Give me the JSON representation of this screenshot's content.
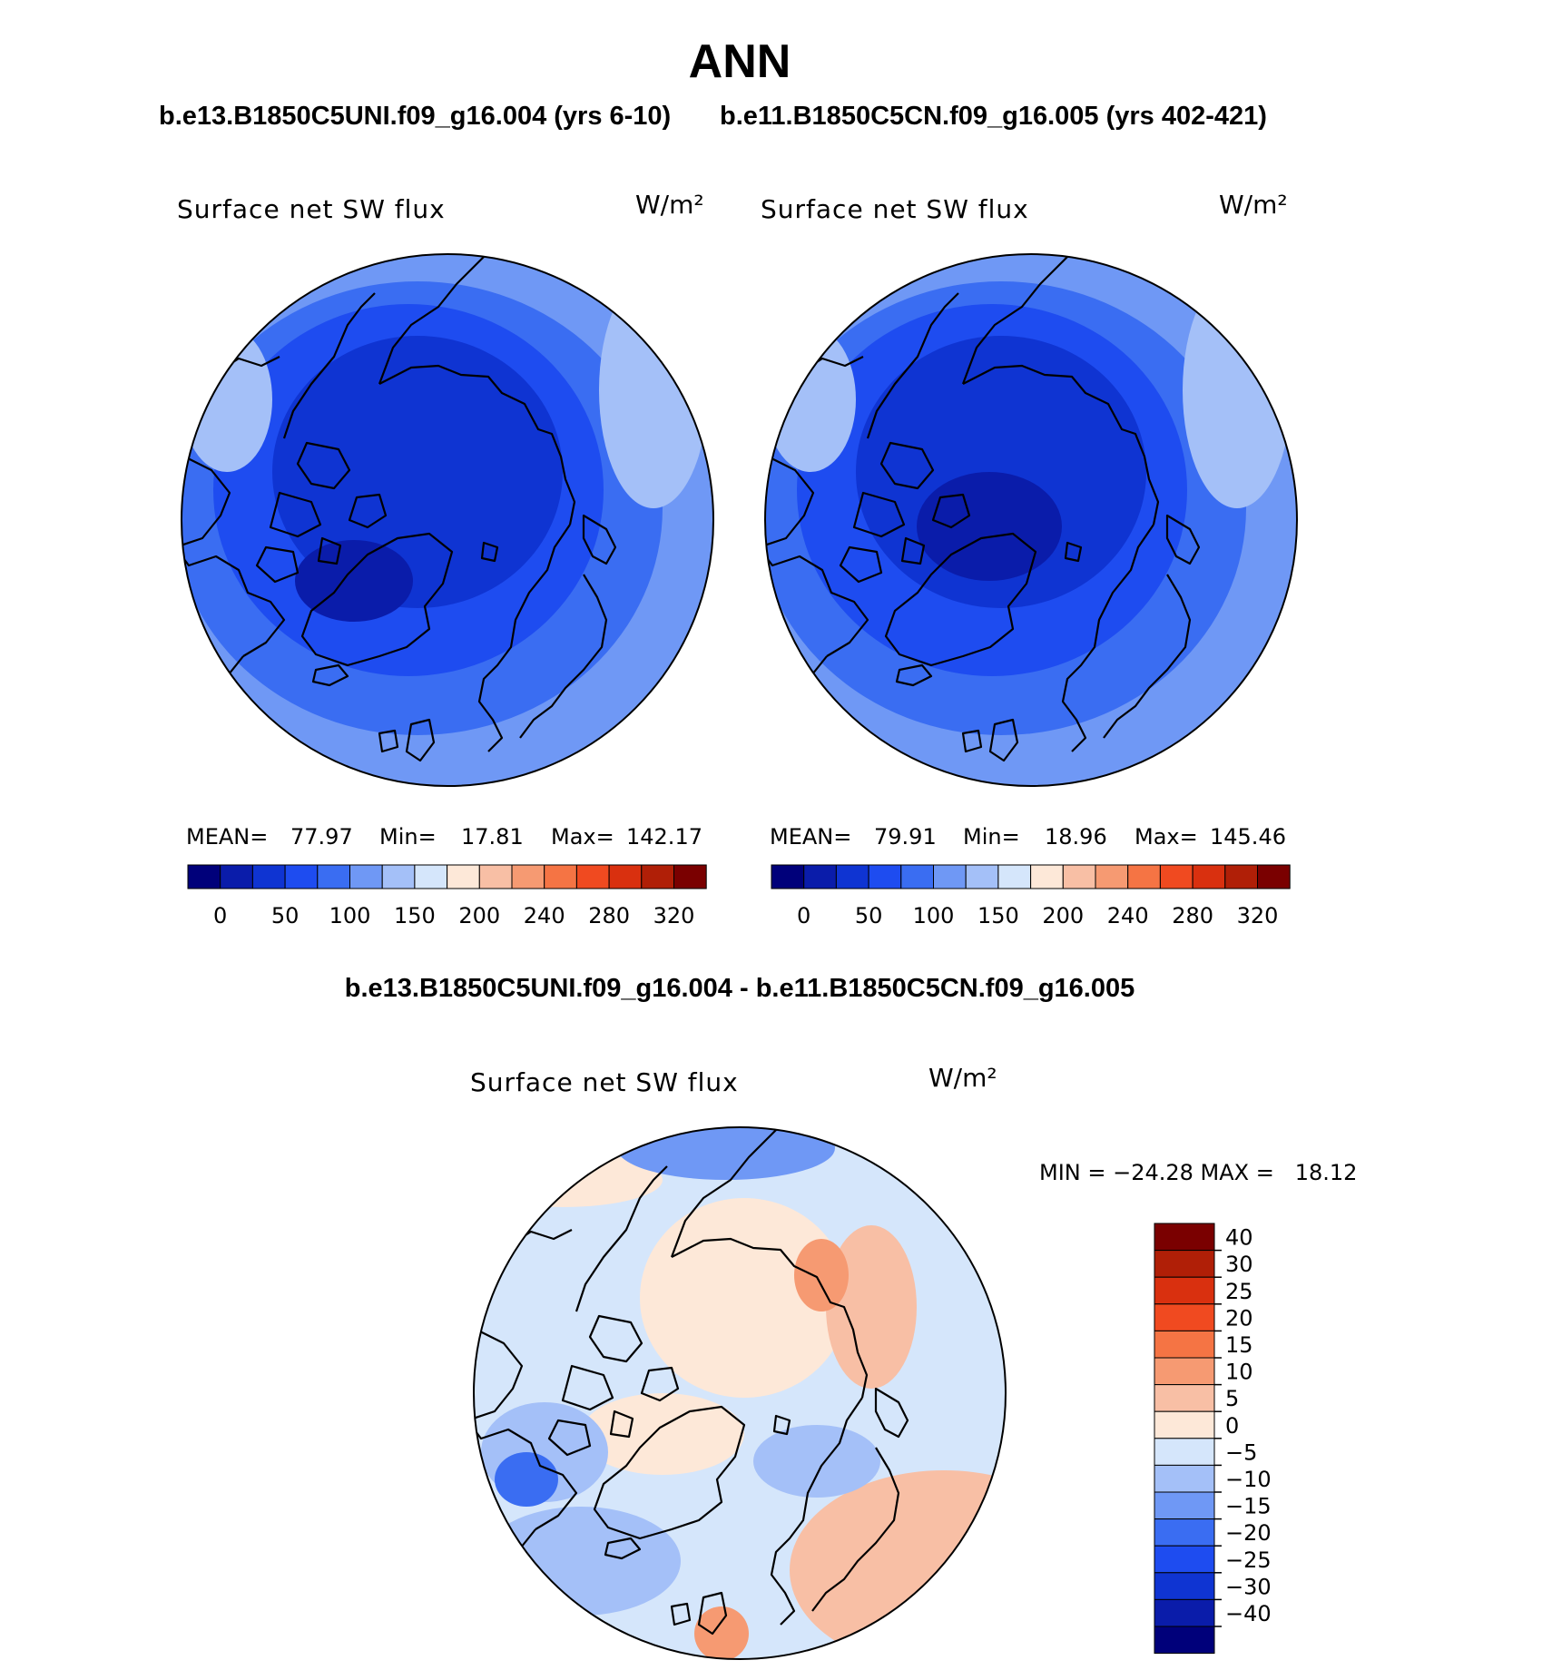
{
  "title": "ANN",
  "panels": [
    {
      "case_title": "b.e13.B1850C5UNI.f09_g16.004 (yrs 6-10)",
      "variable": "Surface net SW flux",
      "units": "W/m²",
      "stats": {
        "mean_label": "MEAN=",
        "mean": "77.97",
        "min_label": "Min=",
        "min": "17.81",
        "max_label": "Max=",
        "max": "142.17"
      }
    },
    {
      "case_title": "b.e11.B1850C5CN.f09_g16.005 (yrs 402-421)",
      "variable": "Surface net SW flux",
      "units": "W/m²",
      "stats": {
        "mean_label": "MEAN=",
        "mean": "79.91",
        "min_label": "Min=",
        "min": "18.96",
        "max_label": "Max=",
        "max": "145.46"
      }
    }
  ],
  "difference": {
    "title": "b.e13.B1850C5UNI.f09_g16.004 - b.e11.B1850C5CN.f09_g16.005",
    "variable": "Surface net SW flux",
    "units": "W/m²",
    "stats_text": "MIN = −24.28 MAX =   18.12"
  },
  "colorbar_main": {
    "colors": [
      "#00007a",
      "#0a1caa",
      "#0f34d2",
      "#1e4cf0",
      "#3a6df2",
      "#6f98f5",
      "#a4c0f8",
      "#d5e6fb",
      "#fde8d8",
      "#f8bfa5",
      "#f69a72",
      "#f57444",
      "#f04a20",
      "#d9300f",
      "#b01f07",
      "#7a0000"
    ],
    "labels": [
      "0",
      "50",
      "100",
      "150",
      "200",
      "240",
      "280",
      "320"
    ]
  },
  "colorbar_diff": {
    "colors": [
      "#7a0000",
      "#b01f07",
      "#d9300f",
      "#f04a20",
      "#f57444",
      "#f69a72",
      "#f8bfa5",
      "#fde8d8",
      "#d5e6fb",
      "#a4c0f8",
      "#6f98f5",
      "#3a6df2",
      "#1e4cf0",
      "#0f34d2",
      "#0a1caa",
      "#00007a"
    ],
    "labels": [
      "40",
      "30",
      "25",
      "20",
      "15",
      "10",
      "5",
      "0",
      "−5",
      "−10",
      "−15",
      "−20",
      "−25",
      "−30",
      "−40"
    ]
  }
}
